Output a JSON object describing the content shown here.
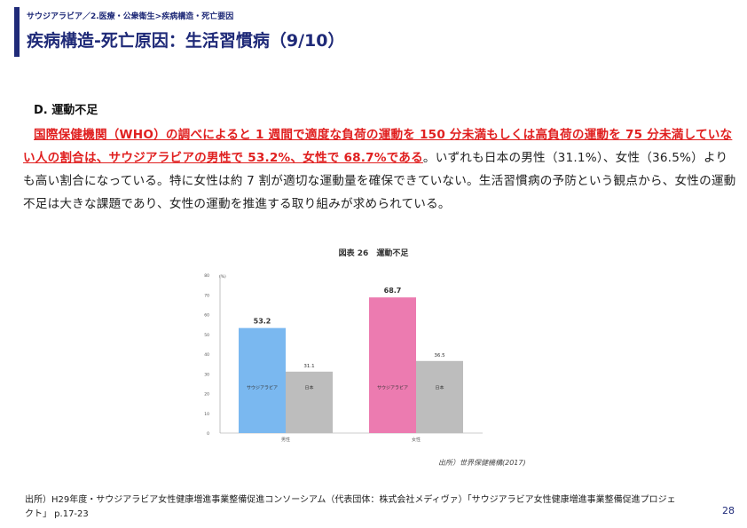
{
  "header": {
    "breadcrumb": "サウジアラビア／2.医療・公衆衛生>疾病構造・死亡要因",
    "title": "疾病構造-死亡原因：生活習慣病（9/10）"
  },
  "section": {
    "heading": "D. 運動不足",
    "lead_highlight": "国際保健機関（WHO）の調べによると 1 週間で適度な負荷の運動を 150 分未満もしくは高負荷の運動を 75 分未満していない人の割合は、サウジアラビアの男性で 53.2%、女性で 68.7%である",
    "body_rest": "。いずれも日本の男性（31.1%）、女性（36.5%）よりも高い割合になっている。特に女性は約 7 割が適切な運動量を確保できていない。生活習慣病の予防という観点から、女性の運動不足は大きな課題であり、女性の運動を推進する取り組みが求められている。"
  },
  "chart_caption": "図表 26　運動不足",
  "chart_source": "出所）世界保健機構(2017)",
  "colors": {
    "accent": "#1f2a78",
    "highlight": "#e02020",
    "saudi_male": "#7ab8f0",
    "saudi_female": "#ec7bb0",
    "japan": "#bdbdbd"
  },
  "chart_data": {
    "type": "bar",
    "categories": [
      "男性",
      "女性"
    ],
    "series": [
      {
        "name": "サウジアラビア",
        "values": [
          53.2,
          68.7
        ]
      },
      {
        "name": "日本",
        "values": [
          31.1,
          36.5
        ]
      }
    ],
    "data_labels": [
      "53.2",
      "68.7",
      "31.1",
      "36.5"
    ],
    "ylabel": "(%)",
    "ylim": [
      0,
      80
    ],
    "yticks": [
      "0",
      "10",
      "20",
      "30",
      "40",
      "50",
      "60",
      "70",
      "80"
    ],
    "grid": false,
    "legend": "none"
  },
  "footer": {
    "source": "出所）H29年度・サウジアラビア女性健康増進事業整備促進コンソーシアム（代表団体：株式会社メディヴァ）「サウジアラビア女性健康増進事業整備促進プロジェクト」 p.17-23",
    "page_number": "28"
  }
}
